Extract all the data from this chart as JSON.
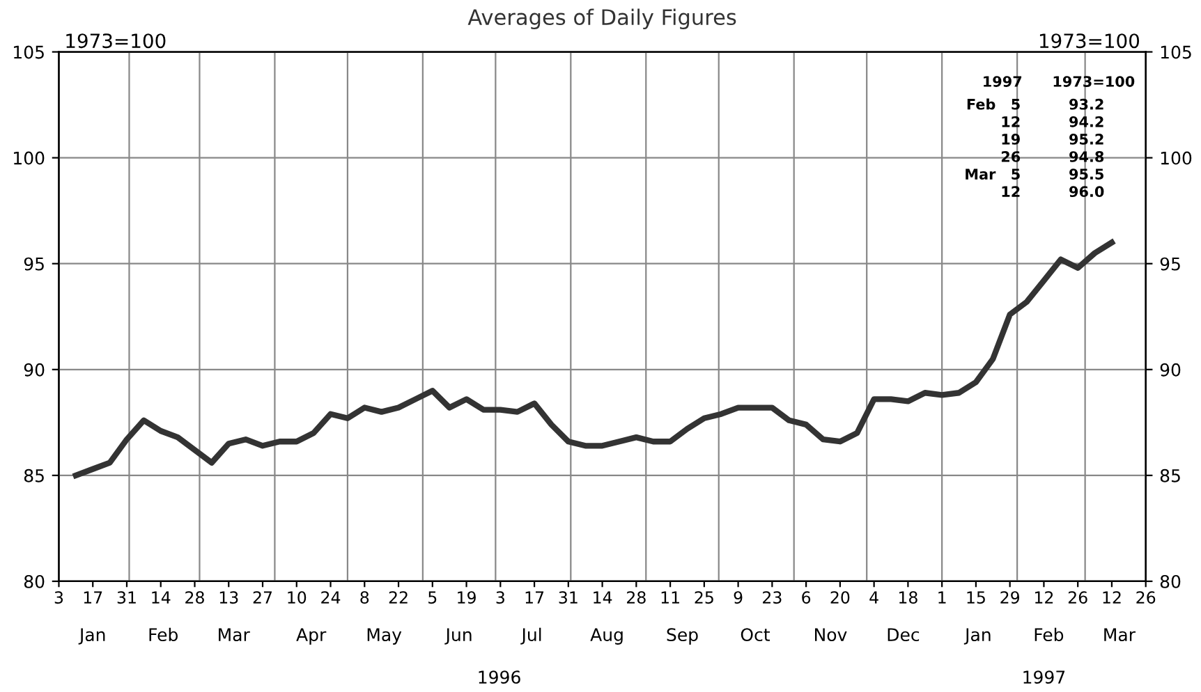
{
  "chart_data": {
    "type": "line",
    "title": "Averages of Daily Figures",
    "ylabel": "1973=100",
    "y2label": "1973=100",
    "x": [
      "1996-01-10",
      "1996-01-17",
      "1996-01-24",
      "1996-01-31",
      "1996-02-07",
      "1996-02-14",
      "1996-02-21",
      "1996-02-28",
      "1996-03-06",
      "1996-03-13",
      "1996-03-20",
      "1996-03-27",
      "1996-04-03",
      "1996-04-10",
      "1996-04-17",
      "1996-04-24",
      "1996-05-01",
      "1996-05-08",
      "1996-05-15",
      "1996-05-22",
      "1996-05-29",
      "1996-06-05",
      "1996-06-12",
      "1996-06-19",
      "1996-06-26",
      "1996-07-03",
      "1996-07-10",
      "1996-07-17",
      "1996-07-24",
      "1996-07-31",
      "1996-08-07",
      "1996-08-14",
      "1996-08-21",
      "1996-08-28",
      "1996-09-04",
      "1996-09-11",
      "1996-09-18",
      "1996-09-25",
      "1996-10-02",
      "1996-10-09",
      "1996-10-16",
      "1996-10-23",
      "1996-10-30",
      "1996-11-06",
      "1996-11-13",
      "1996-11-20",
      "1996-11-27",
      "1996-12-04",
      "1996-12-11",
      "1996-12-18",
      "1996-12-25",
      "1997-01-01",
      "1997-01-08",
      "1997-01-15",
      "1997-01-22",
      "1997-01-29",
      "1997-02-05",
      "1997-02-12",
      "1997-02-19",
      "1997-02-26",
      "1997-03-05",
      "1997-03-12"
    ],
    "series": [
      {
        "color": "#333333",
        "values": [
          85.0,
          85.3,
          85.6,
          86.7,
          87.6,
          87.1,
          86.8,
          86.2,
          85.6,
          86.5,
          86.7,
          86.4,
          86.6,
          86.6,
          87.0,
          87.9,
          87.7,
          88.2,
          88.0,
          88.2,
          88.6,
          89.0,
          88.2,
          88.6,
          88.1,
          88.1,
          88.0,
          88.4,
          87.4,
          86.6,
          86.4,
          86.4,
          86.6,
          86.8,
          86.6,
          86.6,
          87.2,
          87.7,
          87.9,
          88.2,
          88.2,
          88.2,
          87.6,
          87.4,
          86.7,
          86.6,
          87.0,
          88.6,
          88.6,
          88.5,
          88.9,
          88.8,
          88.9,
          89.4,
          90.5,
          92.6,
          93.2,
          94.2,
          95.2,
          94.8,
          95.5,
          96.0
        ]
      }
    ],
    "xlim": [
      "1996-01-03",
      "1997-03-26"
    ],
    "xticks": [
      {
        "value": "1996-01-03",
        "label": "3"
      },
      {
        "value": "1996-01-17",
        "label": "17"
      },
      {
        "value": "1996-01-31",
        "label": "31"
      },
      {
        "value": "1996-02-14",
        "label": "14"
      },
      {
        "value": "1996-02-28",
        "label": "28"
      },
      {
        "value": "1996-03-13",
        "label": "13"
      },
      {
        "value": "1996-03-27",
        "label": "27"
      },
      {
        "value": "1996-04-10",
        "label": "10"
      },
      {
        "value": "1996-04-24",
        "label": "24"
      },
      {
        "value": "1996-05-08",
        "label": "8"
      },
      {
        "value": "1996-05-22",
        "label": "22"
      },
      {
        "value": "1996-06-05",
        "label": "5"
      },
      {
        "value": "1996-06-19",
        "label": "19"
      },
      {
        "value": "1996-07-03",
        "label": "3"
      },
      {
        "value": "1996-07-17",
        "label": "17"
      },
      {
        "value": "1996-07-31",
        "label": "31"
      },
      {
        "value": "1996-08-14",
        "label": "14"
      },
      {
        "value": "1996-08-28",
        "label": "28"
      },
      {
        "value": "1996-09-11",
        "label": "11"
      },
      {
        "value": "1996-09-25",
        "label": "25"
      },
      {
        "value": "1996-10-09",
        "label": "9"
      },
      {
        "value": "1996-10-23",
        "label": "23"
      },
      {
        "value": "1996-11-06",
        "label": "6"
      },
      {
        "value": "1996-11-20",
        "label": "20"
      },
      {
        "value": "1996-12-04",
        "label": "4"
      },
      {
        "value": "1996-12-18",
        "label": "18"
      },
      {
        "value": "1997-01-01",
        "label": "1"
      },
      {
        "value": "1997-01-15",
        "label": "15"
      },
      {
        "value": "1997-01-29",
        "label": "29"
      },
      {
        "value": "1997-02-12",
        "label": "12"
      },
      {
        "value": "1997-02-26",
        "label": "26"
      },
      {
        "value": "1997-03-12",
        "label": "12"
      },
      {
        "value": "1997-03-26",
        "label": "26"
      }
    ],
    "ylim": [
      80,
      105
    ],
    "yticks": [
      80,
      85,
      90,
      95,
      100,
      105
    ],
    "y2lim": [
      80,
      105
    ],
    "y2ticks": [
      80,
      85,
      90,
      95,
      100,
      105
    ],
    "grid": "y",
    "legend": false,
    "marker": "none",
    "line_style": "solid",
    "ref_lines": [
      {
        "axis": "x",
        "value": "1996-02-01",
        "color": "#888888"
      },
      {
        "axis": "x",
        "value": "1996-03-01",
        "color": "#888888"
      },
      {
        "axis": "x",
        "value": "1996-04-01",
        "color": "#888888"
      },
      {
        "axis": "x",
        "value": "1996-05-01",
        "color": "#888888"
      },
      {
        "axis": "x",
        "value": "1996-06-01",
        "color": "#888888"
      },
      {
        "axis": "x",
        "value": "1996-07-01",
        "color": "#888888"
      },
      {
        "axis": "x",
        "value": "1996-08-01",
        "color": "#888888"
      },
      {
        "axis": "x",
        "value": "1996-09-01",
        "color": "#888888"
      },
      {
        "axis": "x",
        "value": "1996-10-01",
        "color": "#888888"
      },
      {
        "axis": "x",
        "value": "1996-11-01",
        "color": "#888888"
      },
      {
        "axis": "x",
        "value": "1996-12-01",
        "color": "#888888"
      },
      {
        "axis": "x",
        "value": "1997-01-01",
        "color": "#888888"
      },
      {
        "axis": "x",
        "value": "1997-02-01",
        "color": "#888888"
      },
      {
        "axis": "x",
        "value": "1997-03-01",
        "color": "#888888"
      }
    ],
    "x2lim": [
      "1996-01-03",
      "1997-03-26"
    ],
    "x2ticks": [
      {
        "value": "1996-01-17",
        "label": "Jan"
      },
      {
        "value": "1996-02-15",
        "label": "Feb"
      },
      {
        "value": "1996-03-15",
        "label": "Mar"
      },
      {
        "value": "1996-04-16",
        "label": "Apr"
      },
      {
        "value": "1996-05-16",
        "label": "May"
      },
      {
        "value": "1996-06-16",
        "label": "Jun"
      },
      {
        "value": "1996-07-16",
        "label": "Jul"
      },
      {
        "value": "1996-08-16",
        "label": "Aug"
      },
      {
        "value": "1996-09-16",
        "label": "Sep"
      },
      {
        "value": "1996-10-16",
        "label": "Oct"
      },
      {
        "value": "1996-11-16",
        "label": "Nov"
      },
      {
        "value": "1996-12-16",
        "label": "Dec"
      },
      {
        "value": "1997-01-16",
        "label": "Jan"
      },
      {
        "value": "1997-02-14",
        "label": "Feb"
      },
      {
        "value": "1997-03-15",
        "label": "Mar"
      }
    ],
    "annotations": [
      "1996",
      "1997",
      "1997\t1973=100",
      "Feb\t5\t93.2",
      "\t12\t94.2",
      "\t19\t95.2",
      "\t26\t94.8",
      "Mar\t5\t95.5",
      "\t12\t96.0"
    ]
  }
}
